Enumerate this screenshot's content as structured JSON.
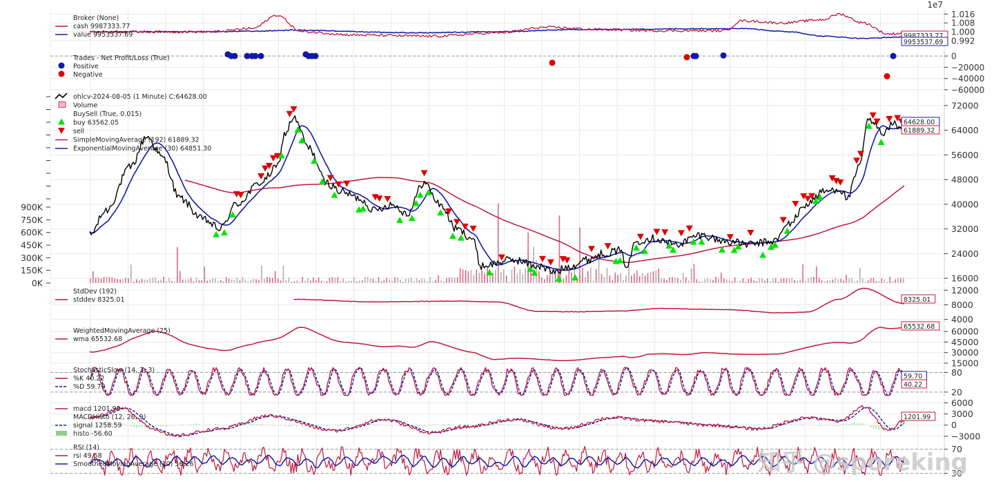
{
  "colors": {
    "red": "#c0163a",
    "blue": "#0f1aa8",
    "black": "#000000",
    "green": "#00e400",
    "sell": "#e00000",
    "grid": "#e9e9e9"
  },
  "watermark": "知乎 @sporeking",
  "chart_data": [
    {
      "id": "broker",
      "type": "line",
      "exponent_label": "1e7",
      "ylim": [
        0.985,
        1.02
      ],
      "yticks": [
        "1.016",
        "1.008",
        "1.000",
        "0.992"
      ],
      "ytick_values": [
        1.016,
        1.008,
        1.0,
        0.992
      ],
      "legend": [
        {
          "name": "Broker (None)",
          "marker": "none"
        },
        {
          "name": "cash 9987333.77",
          "marker": "line-red"
        },
        {
          "name": "value 9953537.69",
          "marker": "line-blue"
        }
      ],
      "last_value_boxes": [
        {
          "text": "9987333.77",
          "color": "red"
        },
        {
          "text": "9953537.69",
          "color": "blue"
        }
      ]
    },
    {
      "id": "trades",
      "type": "scatter",
      "ylim": [
        -60000,
        10000
      ],
      "yticks": [
        "0",
        "−20000",
        "−40000",
        "−60000"
      ],
      "ytick_values": [
        0,
        -20000,
        -40000,
        -60000
      ],
      "legend": [
        {
          "name": "Trades - Net Profit/Loss (True)",
          "marker": "none"
        },
        {
          "name": "Positive",
          "marker": "dot-blue"
        },
        {
          "name": "Negative",
          "marker": "dot-red"
        }
      ]
    },
    {
      "id": "price",
      "type": "line",
      "ylim": [
        14000,
        76000
      ],
      "yticks": [
        "72000",
        "64000",
        "56000",
        "48000",
        "40000",
        "32000",
        "24000",
        "16000"
      ],
      "ytick_values": [
        72000,
        64000,
        56000,
        48000,
        40000,
        32000,
        24000,
        16000
      ],
      "volume_ticks": [
        "900K",
        "750K",
        "600K",
        "450K",
        "300K",
        "150K",
        "0K"
      ],
      "volume_tick_values": [
        900000,
        750000,
        600000,
        450000,
        300000,
        150000,
        0
      ],
      "legend": [
        {
          "name": "ohlcv-2024-08-05 (1 Minute) C:64628.00",
          "marker": "line-black"
        },
        {
          "name": "Volume",
          "marker": "bar-pink"
        },
        {
          "name": "BuySell (True, 0.015)",
          "marker": "none"
        },
        {
          "name": "buy 63562.05",
          "marker": "tri-up"
        },
        {
          "name": "sell",
          "marker": "tri-down"
        },
        {
          "name": "SimpleMovingAverage (192) 61889.32",
          "marker": "line-red"
        },
        {
          "name": "ExponentialMovingAverage (30) 64851.30",
          "marker": "line-blue"
        }
      ],
      "last_value_boxes": [
        {
          "text": "64628.00",
          "color": "blue"
        },
        {
          "text": "61889.32",
          "color": "red"
        }
      ]
    },
    {
      "id": "stddev",
      "type": "line",
      "ylim": [
        3000,
        13000
      ],
      "yticks": [
        "12000",
        "8000",
        "4000"
      ],
      "ytick_values": [
        12000,
        8000,
        4000
      ],
      "legend": [
        {
          "name": "StdDev (192)",
          "marker": "none"
        },
        {
          "name": "stddev 8325.01",
          "marker": "line-red"
        }
      ],
      "last_value_boxes": [
        {
          "text": "8325.01",
          "color": "red"
        }
      ]
    },
    {
      "id": "wma",
      "type": "line",
      "ylim": [
        13000,
        70000
      ],
      "yticks": [
        "60000",
        "45000",
        "30000",
        "15000"
      ],
      "ytick_values": [
        60000,
        45000,
        30000,
        15000
      ],
      "legend": [
        {
          "name": "WeightedMovingAverage (25)",
          "marker": "none"
        },
        {
          "name": "wma 65532.68",
          "marker": "line-red"
        }
      ],
      "last_value_boxes": [
        {
          "text": "65532.68",
          "color": "red"
        }
      ]
    },
    {
      "id": "stoch",
      "type": "line",
      "ylim": [
        5,
        100
      ],
      "yticks": [
        "80",
        "20"
      ],
      "ytick_values": [
        80,
        20
      ],
      "legend": [
        {
          "name": "StochasticSlow (14, 3, 3)",
          "marker": "none"
        },
        {
          "name": "%K 40.22",
          "marker": "line-red"
        },
        {
          "name": "%D 59.70",
          "marker": "dash-blue"
        }
      ],
      "last_value_boxes": [
        {
          "text": "59.70",
          "color": "blue"
        },
        {
          "text": "40.22",
          "color": "red"
        }
      ]
    },
    {
      "id": "macd",
      "type": "line",
      "ylim": [
        -4500,
        7000
      ],
      "yticks": [
        "6000",
        "3000",
        "0",
        "−3000"
      ],
      "ytick_values": [
        6000,
        3000,
        0,
        -3000
      ],
      "legend": [
        {
          "name": "macd 1201.99",
          "marker": "line-red"
        },
        {
          "name": "MACDHisto (12, 26, 9)",
          "marker": "none"
        },
        {
          "name": "signal 1258.59",
          "marker": "dash-blue"
        },
        {
          "name": "histo -56.60",
          "marker": "bar-green"
        }
      ],
      "last_value_boxes": [
        {
          "text": "1201.99",
          "color": "red"
        }
      ]
    },
    {
      "id": "rsi",
      "type": "line",
      "ylim": [
        25,
        80
      ],
      "yticks": [
        "70",
        "30"
      ],
      "ytick_values": [
        70,
        30
      ],
      "legend": [
        {
          "name": "RSI (14)",
          "marker": "none"
        },
        {
          "name": "rsi 49.58",
          "marker": "line-red"
        },
        {
          "name": "SmoothedMovingAverage (10) 56.26",
          "marker": "line-blue"
        }
      ]
    }
  ]
}
